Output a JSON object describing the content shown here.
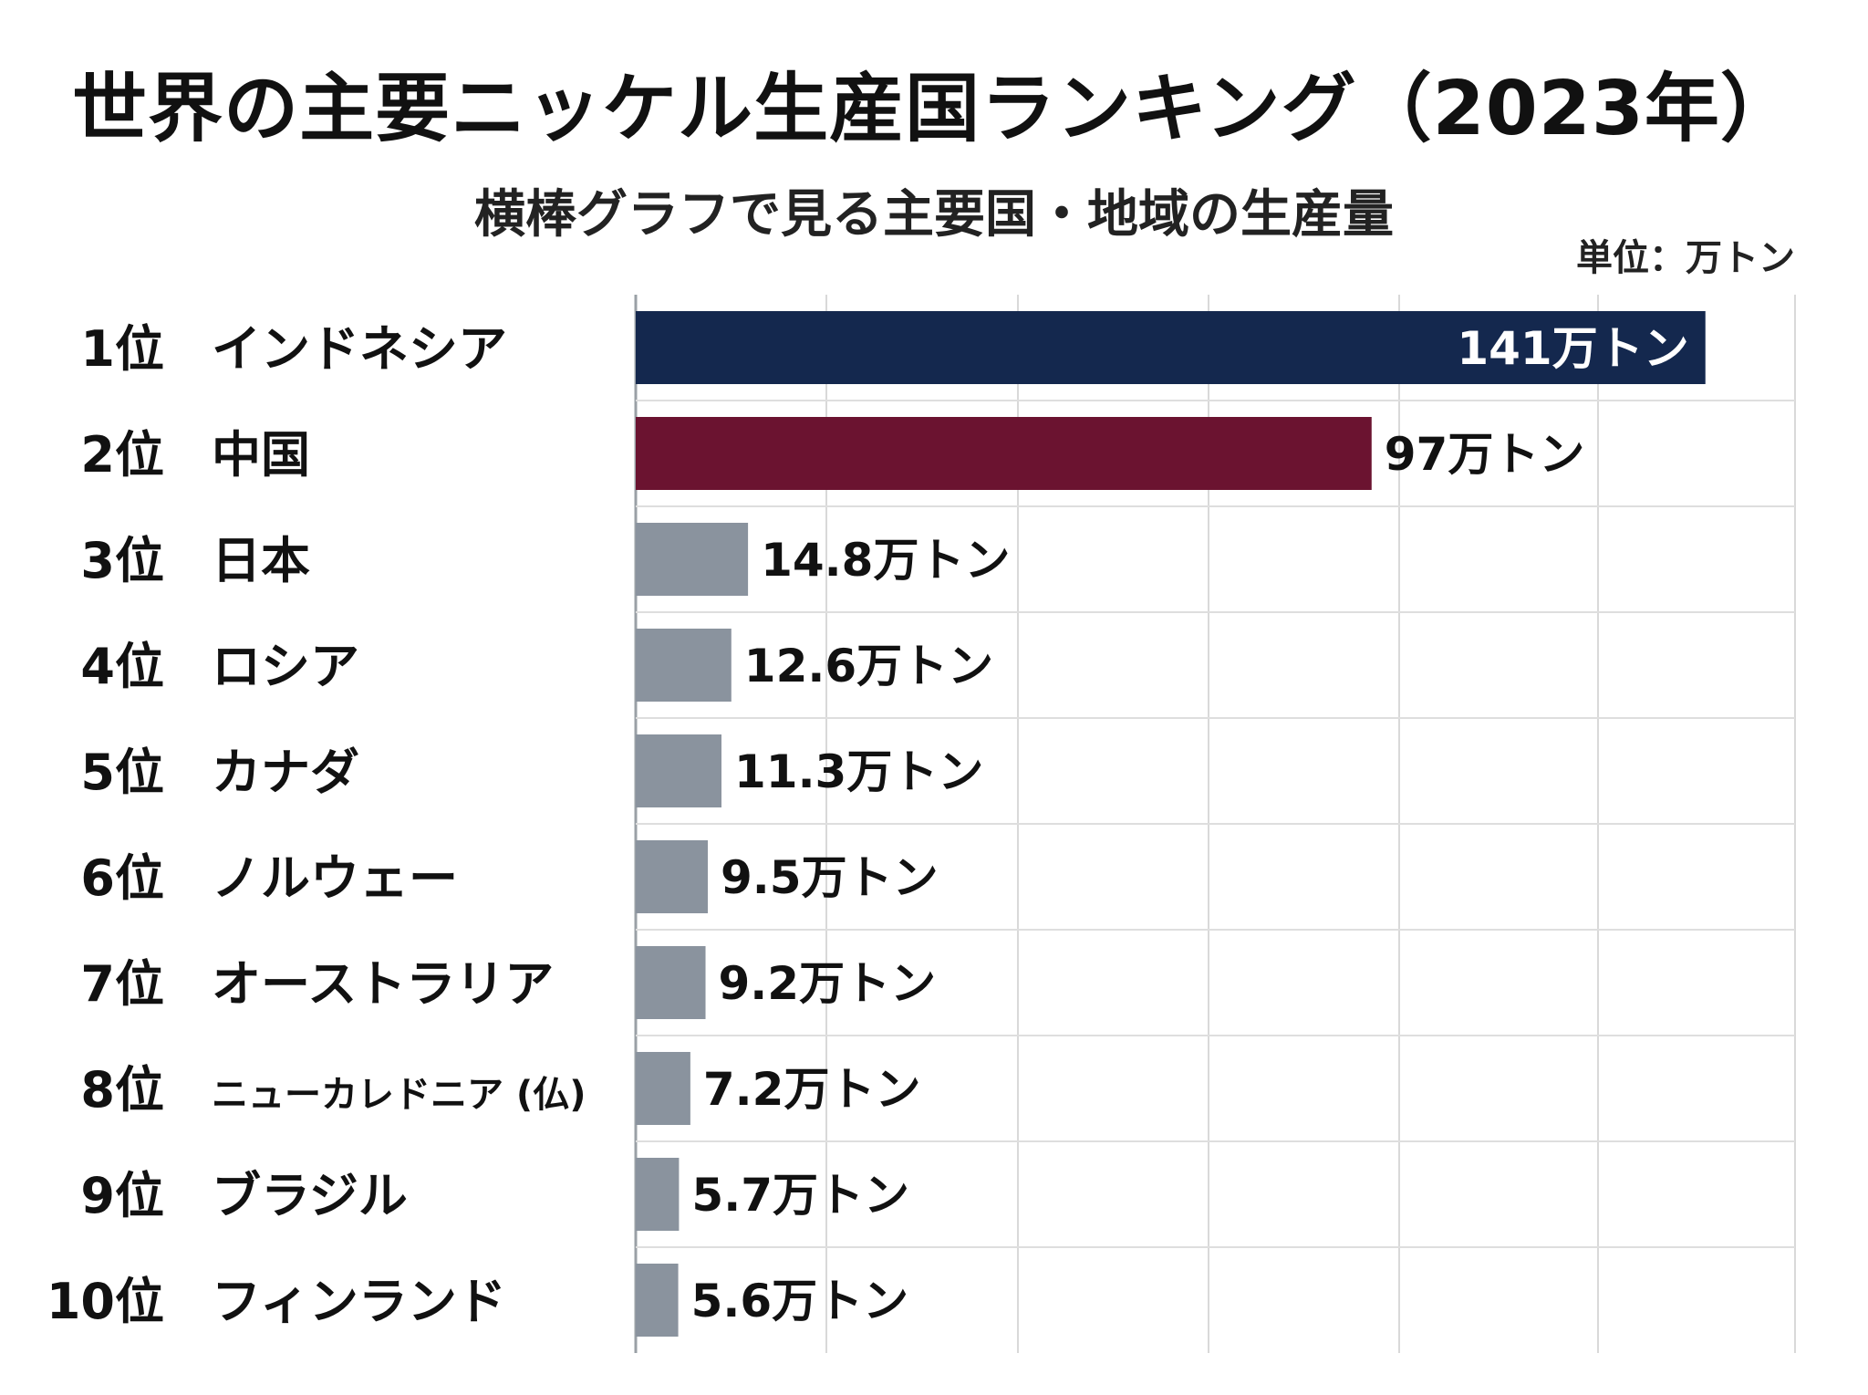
{
  "chart_data": {
    "type": "bar",
    "orientation": "horizontal",
    "title": "世界の主要ニッケル生産国ランキング（2023年）",
    "subtitle": "横棒グラフで見る主要国・地域の生産量",
    "unit_label": "単位：万トン",
    "ranks": [
      "1位",
      "2位",
      "3位",
      "4位",
      "5位",
      "6位",
      "7位",
      "8位",
      "9位",
      "10位"
    ],
    "categories": [
      "インドネシア",
      "中国",
      "日本",
      "ロシア",
      "カナダ",
      "ノルウェー",
      "オーストラリア",
      "ニューカレドニア (仏)",
      "ブラジル",
      "フィンランド"
    ],
    "values": [
      141,
      97,
      14.8,
      12.6,
      11.3,
      9.5,
      9.2,
      7.2,
      5.7,
      5.6
    ],
    "value_labels": [
      "141万トン",
      "97万トン",
      "14.8万トン",
      "12.6万トン",
      "11.3万トン",
      "9.5万トン",
      "9.2万トン",
      "7.2万トン",
      "5.7万トン",
      "5.6万トン"
    ],
    "colors": [
      "#14284e",
      "#6b1330",
      "#8a939e",
      "#8a939e",
      "#8a939e",
      "#8a939e",
      "#8a939e",
      "#8a939e",
      "#8a939e",
      "#8a939e"
    ],
    "xlim": [
      0,
      145
    ],
    "grid": true
  }
}
